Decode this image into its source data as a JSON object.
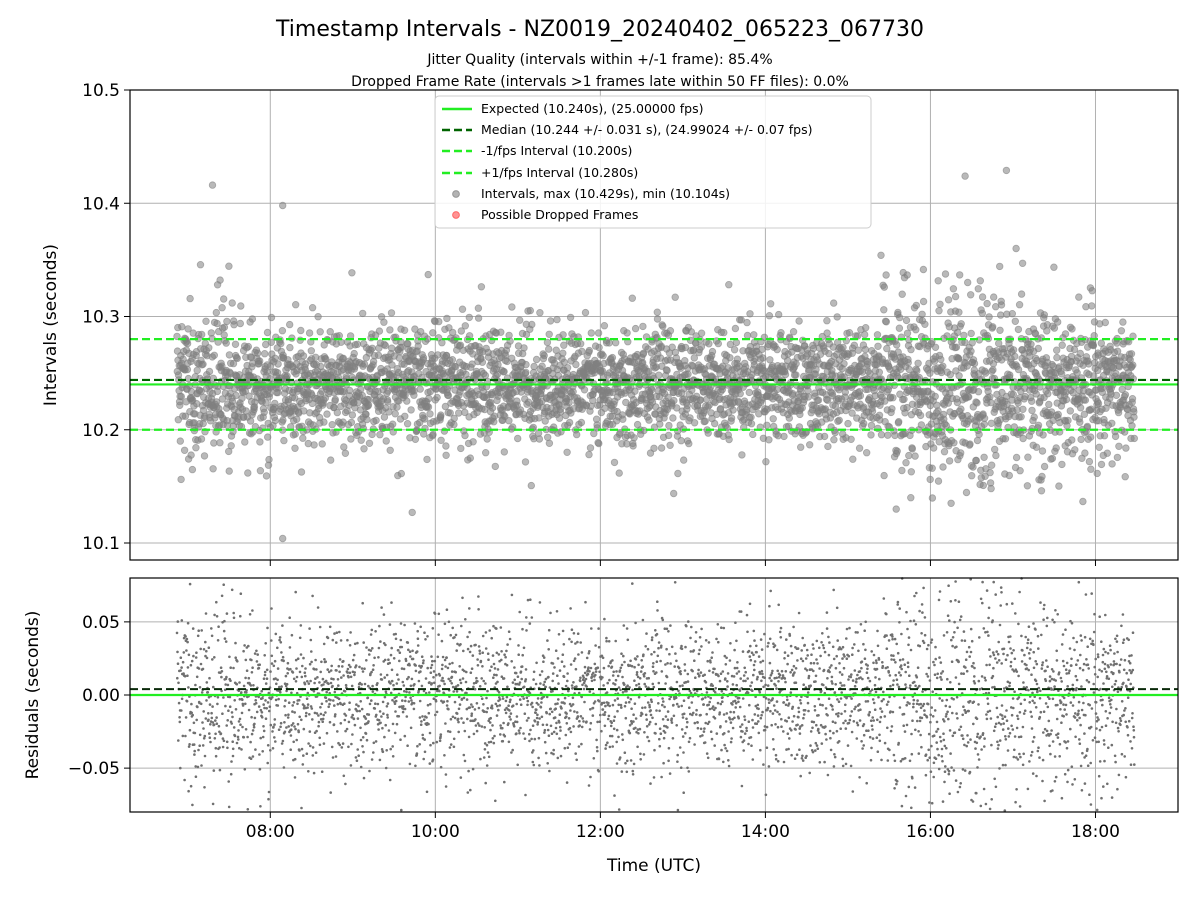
{
  "chart_data": [
    {
      "type": "scatter",
      "title": "Timestamp Intervals - NZ0019_20240402_065223_067730",
      "subtitle_lines": [
        "Jitter Quality (intervals within +/-1 frame): 85.4%",
        "Dropped Frame Rate (intervals >1 frames late within 50 FF files): 0.0%"
      ],
      "ylabel": "Intervals (seconds)",
      "xlabel": "",
      "xlim_hours": [
        6.3,
        19.0
      ],
      "ylim": [
        10.085,
        10.5
      ],
      "y_ticks": [
        "10.1",
        "10.2",
        "10.3",
        "10.4",
        "10.5"
      ],
      "x_ticks": [
        "08:00",
        "10:00",
        "12:00",
        "14:00",
        "16:00",
        "18:00"
      ],
      "grid": true,
      "legend_position": "top-center",
      "legend": [
        {
          "label": "Expected (10.240s), (25.00000 fps)",
          "style": "solid",
          "color": "#22ee22"
        },
        {
          "label": "Median (10.244 +/- 0.031 s), (24.99024 +/- 0.07 fps)",
          "style": "dashed",
          "color": "#006400"
        },
        {
          "label": "-1/fps Interval (10.200s)",
          "style": "dashed",
          "color": "#22ee22"
        },
        {
          "label": "+1/fps Interval (10.280s)",
          "style": "dashed",
          "color": "#22ee22"
        },
        {
          "label": "Intervals, max (10.429s), min (10.104s)",
          "style": "marker",
          "color": "#808080"
        },
        {
          "label": "Possible Dropped Frames",
          "style": "marker",
          "color": "#ff6666"
        }
      ],
      "reference_lines": {
        "expected": 10.24,
        "median": 10.244,
        "minus_1fps": 10.2,
        "plus_1fps": 10.28
      },
      "series": [
        {
          "name": "Intervals",
          "time_range_hours": [
            6.87,
            18.47
          ],
          "count": 3800,
          "center": 10.24,
          "std": 0.031,
          "max": 10.429,
          "min": 10.104
        }
      ],
      "highlighted_points": [
        {
          "x_hours": 8.15,
          "y": 10.104
        },
        {
          "x_hours": 8.15,
          "y": 10.398
        },
        {
          "x_hours": 7.3,
          "y": 10.416
        },
        {
          "x_hours": 9.72,
          "y": 10.127
        },
        {
          "x_hours": 16.92,
          "y": 10.429
        },
        {
          "x_hours": 16.42,
          "y": 10.424
        }
      ]
    },
    {
      "type": "scatter",
      "ylabel": "Residuals (seconds)",
      "xlabel": "Time (UTC)",
      "xlim_hours": [
        6.3,
        19.0
      ],
      "ylim": [
        -0.08,
        0.08
      ],
      "y_ticks": [
        "−0.05",
        "0.00",
        "0.05"
      ],
      "x_ticks": [
        "08:00",
        "10:00",
        "12:00",
        "14:00",
        "16:00",
        "18:00"
      ],
      "grid": true,
      "reference_lines": {
        "zero": 0.0,
        "median_offset": 0.004
      },
      "series": [
        {
          "name": "Residuals",
          "time_range_hours": [
            6.87,
            18.47
          ],
          "count": 3800,
          "center": 0.0,
          "std": 0.031
        }
      ]
    }
  ],
  "colors": {
    "expected": "#22ee22",
    "median": "#006400",
    "points": "#808080",
    "dropped": "#ff6666",
    "grid": "#b0b0b0"
  }
}
